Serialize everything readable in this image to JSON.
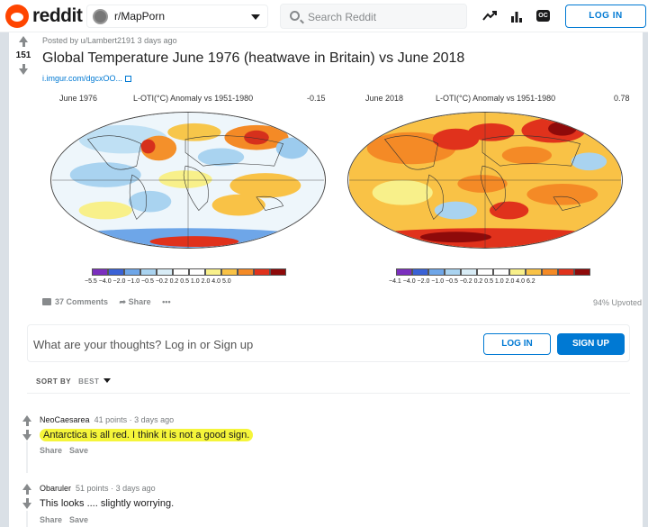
{
  "header": {
    "brand": "reddit",
    "subreddit": "r/MapPorn",
    "search_placeholder": "Search Reddit",
    "login_label": "LOG IN",
    "icons": [
      "trending-icon",
      "stats-icon",
      "oc-icon"
    ],
    "oc_label": "OC"
  },
  "post": {
    "score": "151",
    "meta": "Posted by u/Lambert2191 3 days ago",
    "title": "Global Temperature June 1976 (heatwave in Britain) vs June 2018",
    "domain": "i.imgur.com/dgcxOO...",
    "maps": [
      {
        "label_left": "June 1976",
        "label_mid": "L-OTI(°C) Anomaly vs 1951-1980",
        "label_right": "-0.15",
        "scale": "−5.5 −4.0 −2.0 −1.0 −0.5 −0.2  0.2   0.5   1.0   2.0   4.0   5.0"
      },
      {
        "label_left": "June 2018",
        "label_mid": "L-OTI(°C) Anomaly vs 1951-1980",
        "label_right": "0.78",
        "scale": "−4.1 −4.0 −2.0 −1.0 −0.5 −0.2  0.2   0.5   1.0   2.0   4.0   6.2"
      }
    ],
    "scale_colors": [
      "#7b2fbe",
      "#3a62d6",
      "#6ea6e8",
      "#a9d3f0",
      "#d8ecf6",
      "#ffffff",
      "#ffffff",
      "#f8f08a",
      "#f9c246",
      "#f48a26",
      "#e0321c",
      "#8e0a0a"
    ],
    "comments_label": "37 Comments",
    "share_label": "Share",
    "more_label": "•••",
    "upvoted": "94% Upvoted"
  },
  "comment_box": {
    "placeholder": "What are your thoughts? Log in or Sign up",
    "login_label": "LOG IN",
    "signup_label": "SIGN UP"
  },
  "sort": {
    "label": "SORT BY",
    "value": "BEST"
  },
  "comments": [
    {
      "author": "NeoCaesarea",
      "points": "41 points",
      "time": "3 days ago",
      "body": "Antarctica is all red. I think it is not a good sign.",
      "share": "Share",
      "save": "Save"
    },
    {
      "author": "Obaruler",
      "points": "51 points",
      "time": "3 days ago",
      "body": "This looks .... slightly worrying.",
      "share": "Share",
      "save": "Save"
    }
  ]
}
